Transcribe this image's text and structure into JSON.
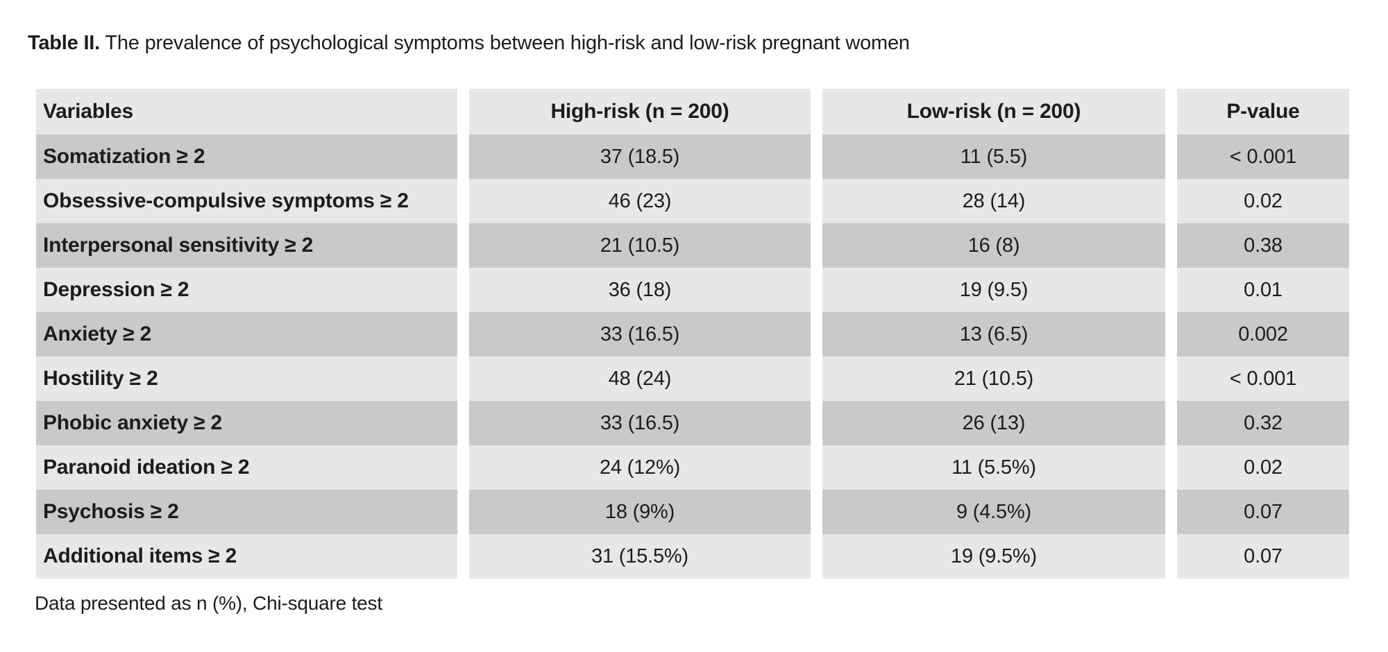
{
  "title": {
    "label": "Table II.",
    "caption": " The prevalence of psychological symptoms between high-risk and low-risk pregnant women"
  },
  "table": {
    "columns": [
      "Variables",
      "High-risk (n = 200)",
      "Low-risk (n = 200)",
      "P-value"
    ],
    "rows": [
      {
        "variable": "Somatization ≥ 2",
        "high_risk": "37 (18.5)",
        "low_risk": "11 (5.5)",
        "p_value": "< 0.001"
      },
      {
        "variable": "Obsessive-compulsive symptoms ≥ 2",
        "high_risk": "46 (23)",
        "low_risk": "28 (14)",
        "p_value": "0.02"
      },
      {
        "variable": "Interpersonal sensitivity ≥ 2",
        "high_risk": "21 (10.5)",
        "low_risk": "16 (8)",
        "p_value": "0.38"
      },
      {
        "variable": "Depression ≥ 2",
        "high_risk": "36 (18)",
        "low_risk": "19 (9.5)",
        "p_value": "0.01"
      },
      {
        "variable": "Anxiety ≥ 2",
        "high_risk": "33 (16.5)",
        "low_risk": "13 (6.5)",
        "p_value": "0.002"
      },
      {
        "variable": "Hostility ≥ 2",
        "high_risk": "48 (24)",
        "low_risk": "21 (10.5)",
        "p_value": "< 0.001"
      },
      {
        "variable": "Phobic anxiety ≥ 2",
        "high_risk": "33 (16.5)",
        "low_risk": "26 (13)",
        "p_value": "0.32"
      },
      {
        "variable": "Paranoid ideation ≥ 2",
        "high_risk": "24 (12%)",
        "low_risk": "11 (5.5%)",
        "p_value": "0.02"
      },
      {
        "variable": "Psychosis ≥ 2",
        "high_risk": "18 (9%)",
        "low_risk": "9 (4.5%)",
        "p_value": "0.07"
      },
      {
        "variable": "Additional items ≥ 2",
        "high_risk": "31 (15.5%)",
        "low_risk": "19 (9.5%)",
        "p_value": "0.07"
      }
    ]
  },
  "footnote": "Data presented as n (%), Chi-square test",
  "colors": {
    "background": "#ffffff",
    "row_light": "#e7e7e7",
    "row_dark": "#c9c9c9",
    "text": "#1c1c1c"
  }
}
